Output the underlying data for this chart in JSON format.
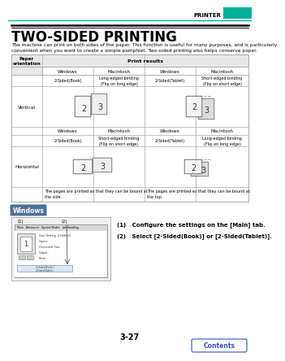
{
  "page_num": "3-27",
  "header_text": "PRINTER",
  "header_bar_color": "#00b09b",
  "title": "TWO-SIDED PRINTING",
  "intro_line1": "The machine can print on both sides of the paper. This function is useful for many purposes, and is particularly",
  "intro_line2": "convenient when you want to create a simple pamphlet. Two-sided printing also helps conserve paper.",
  "table": {
    "col_header": "Print results",
    "paper_orient": "Paper\norientation",
    "vertical_label": "Vertical",
    "horizontal_label": "Horizontal",
    "col1_label": "Windows",
    "col2_label": "Macintosh",
    "col3_label": "Windows",
    "col4_label": "Macintosh",
    "vert_book_win": "2-Sided(Book)",
    "vert_book_mac": "Long-edged binding\n(Flip on long edge)",
    "vert_tab_win": "2-Sided(Tablet)",
    "vert_tab_mac": "Short-edged binding\n(Flip on short edge)",
    "horiz_book_win": "2-Sided(Book)",
    "horiz_book_mac": "Short-edged binding\n(Flip on short edge)",
    "horiz_tab_win": "2-Sided(Tablet)",
    "horiz_tab_mac": "Long-edged binding\n(Flip on long edge)",
    "footer_left": "The pages are printed so that they can be bound at\nthe side.",
    "footer_right": "The pages are printed so that they can be bound at\nthe top."
  },
  "windows_section": {
    "label": "Windows",
    "label_bg": "#4d7099",
    "label_text_color": "#ffffff",
    "step1": "(1)   Configure the settings on the [Main] tab.",
    "step2": "(2)   Select [2-Sided(Book)] or [2-Sided(Tablet)]."
  },
  "bg_color": "#ffffff",
  "text_color": "#000000",
  "table_border_color": "#aaaaaa",
  "table_header_fill": "#e8e8e8",
  "contents_btn_text": "Contents",
  "contents_btn_color": "#3355bb"
}
